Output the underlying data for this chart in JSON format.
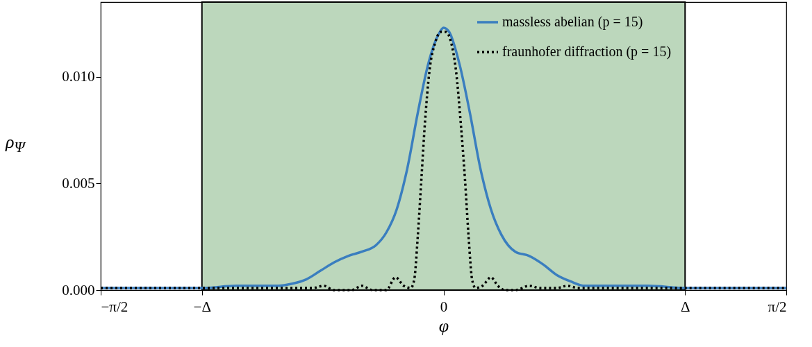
{
  "chart_data": {
    "type": "line",
    "xlabel": "φ",
    "ylabel": "ρ$_{Ψ}$",
    "xlim": [
      -1.5708,
      1.5708
    ],
    "ylim": [
      0,
      0.0135
    ],
    "xticks": [
      {
        "value": -1.5708,
        "label": "−π/2"
      },
      {
        "value": -1.107,
        "label": "−Δ"
      },
      {
        "value": 0,
        "label": "0"
      },
      {
        "value": 1.107,
        "label": "Δ"
      },
      {
        "value": 1.5708,
        "label": "π/2"
      }
    ],
    "yticks": [
      {
        "value": 0,
        "label": "0.000"
      },
      {
        "value": 0.005,
        "label": "0.005"
      },
      {
        "value": 0.01,
        "label": "0.010"
      }
    ],
    "bands": [
      {
        "axis": "x",
        "from": -1.107,
        "to": 1.107,
        "label": null,
        "color": "#bcd7bc"
      }
    ],
    "grid": false,
    "legend": "top right",
    "series": [
      {
        "name": "massless abelian (p = 15)",
        "color": "#3a7ebf",
        "line_style": "solid",
        "x": [
          -1.5708,
          -1.108,
          -0.948,
          -0.757,
          -0.693,
          -0.629,
          -0.565,
          -0.501,
          -0.437,
          -0.374,
          -0.31,
          -0.262,
          -0.214,
          -0.166,
          -0.118,
          -0.07,
          -0.022,
          0,
          0.026,
          0.073,
          0.121,
          0.169,
          0.217,
          0.265,
          0.329,
          0.393,
          0.457,
          0.52,
          0.584,
          0.648,
          0.776,
          0.936,
          1.114,
          1.5708
        ],
        "values": [
          0.0001,
          0.0001,
          0.0002,
          0.0002,
          0.0003,
          0.0005,
          0.0009,
          0.0013,
          0.0016,
          0.0018,
          0.0021,
          0.0027,
          0.0038,
          0.0057,
          0.0083,
          0.0106,
          0.012,
          0.0123,
          0.0121,
          0.0106,
          0.0083,
          0.0057,
          0.0038,
          0.0026,
          0.0018,
          0.0016,
          0.0012,
          0.0007,
          0.0004,
          0.0002,
          0.0002,
          0.0002,
          0.0001,
          0.0001
        ]
      },
      {
        "name": "fraunhofer diffraction (p = 15)",
        "color": "#000000",
        "line_style": "dotted",
        "x": [
          -1.5708,
          -0.597,
          -0.549,
          -0.501,
          -0.421,
          -0.374,
          -0.326,
          -0.262,
          -0.22,
          -0.182,
          -0.15,
          -0.134,
          -0.118,
          -0.102,
          -0.086,
          -0.064,
          -0.038,
          -0.013,
          0.01,
          0.035,
          0.057,
          0.08,
          0.099,
          0.115,
          0.131,
          0.147,
          0.179,
          0.217,
          0.249,
          0.281,
          0.329,
          0.393,
          0.441,
          0.52,
          0.568,
          0.616,
          1.5708
        ],
        "values": [
          0.0001,
          0.0001,
          0.0002,
          0,
          0,
          0.0002,
          0,
          0,
          0.0006,
          0.0002,
          0.0001,
          0.0005,
          0.0025,
          0.0051,
          0.0077,
          0.0103,
          0.0116,
          0.0121,
          0.0121,
          0.0116,
          0.0103,
          0.0077,
          0.0051,
          0.0025,
          0.0005,
          0.0001,
          0.0002,
          0.0006,
          0.0002,
          0,
          0,
          0.0002,
          0.0001,
          0.0001,
          0.0002,
          0.0001,
          0.0001
        ]
      }
    ]
  }
}
